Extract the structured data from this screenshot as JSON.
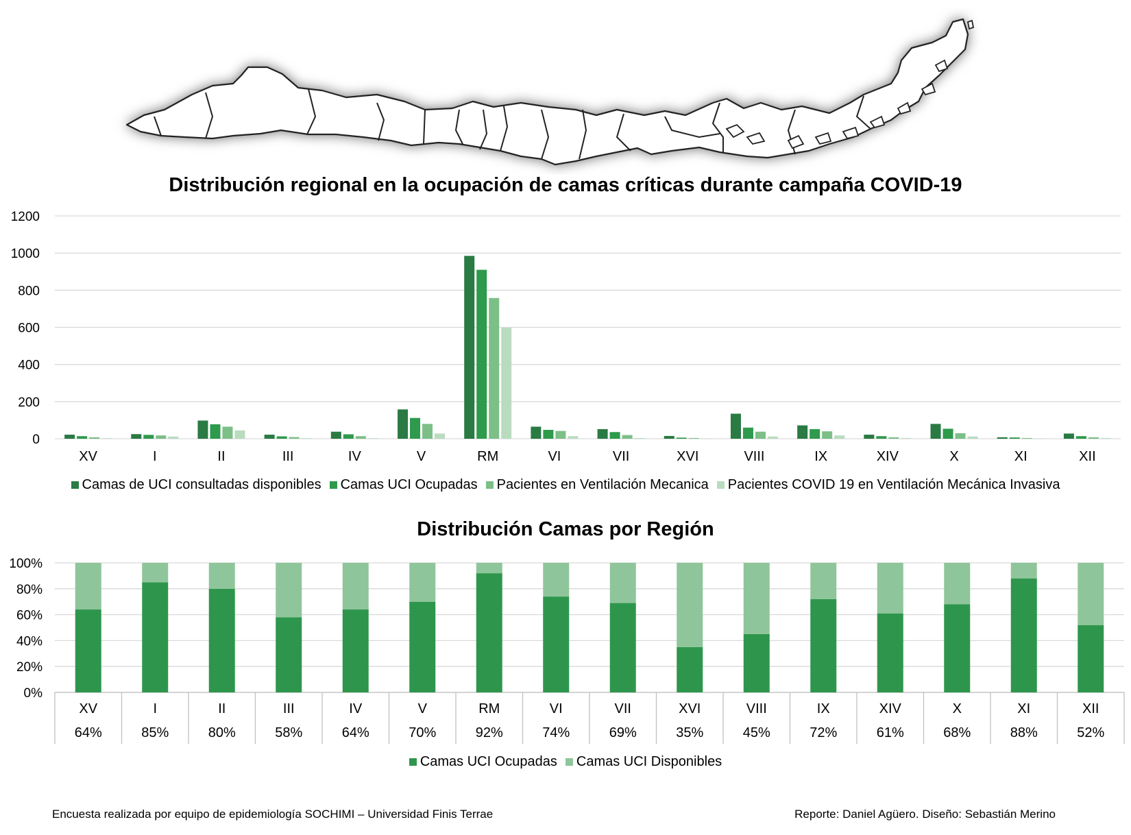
{
  "chart_data": [
    {
      "type": "bar",
      "title": "Distribución regional en la ocupación de camas críticas durante campaña COVID-19",
      "categories": [
        "XV",
        "I",
        "II",
        "III",
        "IV",
        "V",
        "RM",
        "VI",
        "VII",
        "XVI",
        "VIII",
        "IX",
        "XIV",
        "X",
        "XI",
        "XII"
      ],
      "ylim": [
        0,
        1200
      ],
      "yticks": [
        0,
        200,
        400,
        600,
        800,
        1000,
        1200
      ],
      "grid": true,
      "legend_position": "bottom",
      "series": [
        {
          "name": "Camas de UCI consultadas disponibles",
          "color": "#2a7a44",
          "values": [
            22,
            25,
            98,
            22,
            38,
            158,
            985,
            65,
            52,
            15,
            135,
            72,
            22,
            80,
            8,
            28
          ]
        },
        {
          "name": "Camas UCI Ocupadas",
          "color": "#2e9a4c",
          "values": [
            14,
            21,
            78,
            13,
            24,
            112,
            910,
            48,
            36,
            6,
            60,
            52,
            14,
            54,
            7,
            14
          ]
        },
        {
          "name": "Pacientes en Ventilación Mecanica",
          "color": "#7cbf87",
          "values": [
            8,
            18,
            65,
            9,
            14,
            80,
            758,
            42,
            20,
            4,
            38,
            40,
            8,
            30,
            4,
            8
          ]
        },
        {
          "name": "Pacientes COVID 19 en Ventilación Mecánica Invasiva",
          "color": "#b9dcbf",
          "values": [
            3,
            12,
            45,
            3,
            3,
            28,
            598,
            14,
            4,
            2,
            12,
            18,
            4,
            12,
            2,
            4
          ]
        }
      ]
    },
    {
      "type": "bar",
      "stacked": true,
      "percent": true,
      "title": "Distribución Camas por Región",
      "categories": [
        "XV",
        "I",
        "II",
        "III",
        "IV",
        "V",
        "RM",
        "VI",
        "VII",
        "XVI",
        "VIII",
        "IX",
        "XIV",
        "X",
        "XI",
        "XII"
      ],
      "data_table_labels": [
        "64%",
        "85%",
        "80%",
        "58%",
        "64%",
        "70%",
        "92%",
        "74%",
        "69%",
        "35%",
        "45%",
        "72%",
        "61%",
        "68%",
        "88%",
        "52%"
      ],
      "ylim": [
        0,
        100
      ],
      "yticks": [
        "0%",
        "20%",
        "40%",
        "60%",
        "80%",
        "100%"
      ],
      "grid": true,
      "legend_position": "bottom",
      "series": [
        {
          "name": "Camas UCI Ocupadas",
          "color": "#2e964c",
          "values": [
            64,
            85,
            80,
            58,
            64,
            70,
            92,
            74,
            69,
            35,
            45,
            72,
            61,
            68,
            88,
            52
          ]
        },
        {
          "name": "Camas UCI Disponibles",
          "color": "#8fc59a",
          "values": [
            36,
            15,
            20,
            42,
            36,
            30,
            8,
            26,
            31,
            65,
            55,
            28,
            39,
            32,
            12,
            48
          ]
        }
      ]
    }
  ],
  "footer": {
    "left": "Encuesta realizada por equipo de epidemiología SOCHIMI – Universidad Finis Terrae",
    "right": "Reporte: Daniel Agüero. Diseño: Sebastián Merino"
  }
}
